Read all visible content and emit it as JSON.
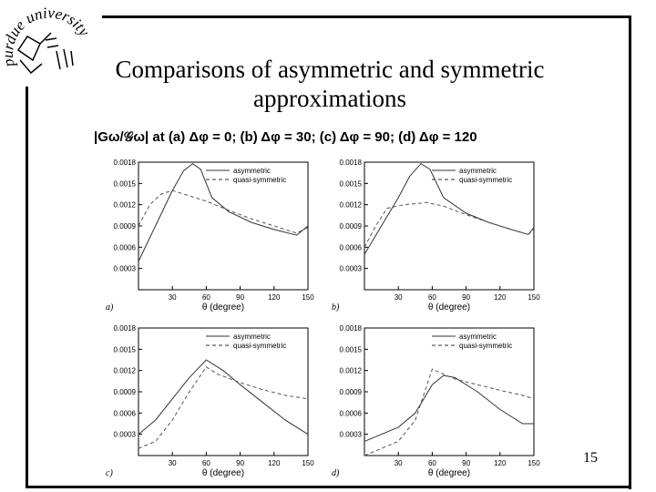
{
  "slide": {
    "logo_text": "purdue university",
    "title_line1": "Comparisons of asymmetric and symmetric",
    "title_line2": "approximations",
    "caption": "|Gω/𝒢ω| at (a) Δφ = 0; (b) Δφ = 30; (c) Δφ = 90; (d) Δφ = 120",
    "page_number": "15"
  },
  "chart_data": [
    {
      "type": "line",
      "panel_label": "a)",
      "xlabel": "θ (degree)",
      "ylim": [
        0,
        0.0018
      ],
      "xlim": [
        0,
        150
      ],
      "xticks": [
        "30",
        "60",
        "90",
        "120",
        "150"
      ],
      "yticks": [
        "0.0018",
        "0.0015",
        "0.0012",
        "0.0009",
        "0.0006",
        "0.0003"
      ],
      "legend_position": "top-right",
      "series": [
        {
          "name": "asymmetric",
          "style": "solid",
          "x": [
            0,
            15,
            30,
            40,
            48,
            55,
            65,
            80,
            100,
            120,
            140,
            150
          ],
          "y": [
            0.0004,
            0.0009,
            0.0014,
            0.00168,
            0.00178,
            0.0017,
            0.0013,
            0.0011,
            0.00095,
            0.00085,
            0.00077,
            0.0009
          ]
        },
        {
          "name": "quasi-symmetric",
          "style": "dashed",
          "x": [
            0,
            10,
            20,
            30,
            40,
            60,
            80,
            100,
            120,
            140,
            150
          ],
          "y": [
            0.0009,
            0.0012,
            0.00135,
            0.0014,
            0.00135,
            0.00125,
            0.00112,
            0.001,
            0.0009,
            0.0008,
            0.00088
          ]
        }
      ]
    },
    {
      "type": "line",
      "panel_label": "b)",
      "xlabel": "θ (degree)",
      "ylim": [
        0,
        0.0018
      ],
      "xlim": [
        0,
        150
      ],
      "xticks": [
        "30",
        "60",
        "90",
        "120",
        "150"
      ],
      "yticks": [
        "0.0018",
        "0.0015",
        "0.0012",
        "0.0009",
        "0.0006",
        "0.0003"
      ],
      "legend_position": "top-right",
      "series": [
        {
          "name": "asymmetric",
          "style": "solid",
          "x": [
            0,
            15,
            30,
            40,
            50,
            58,
            70,
            90,
            110,
            130,
            145,
            150
          ],
          "y": [
            0.0005,
            0.0009,
            0.0013,
            0.0016,
            0.00178,
            0.0017,
            0.0013,
            0.00108,
            0.00095,
            0.00085,
            0.00078,
            0.00088
          ]
        },
        {
          "name": "quasi-symmetric",
          "style": "dashed",
          "x": [
            0,
            10,
            20,
            35,
            55,
            70,
            90,
            110,
            130,
            145,
            150
          ],
          "y": [
            0.0006,
            0.0009,
            0.00115,
            0.0012,
            0.00123,
            0.00118,
            0.00106,
            0.00095,
            0.00085,
            0.00078,
            0.00085
          ]
        }
      ]
    },
    {
      "type": "line",
      "panel_label": "c)",
      "xlabel": "θ (degree)",
      "ylim": [
        0,
        0.0018
      ],
      "xlim": [
        0,
        150
      ],
      "xticks": [
        "30",
        "60",
        "90",
        "120",
        "150"
      ],
      "yticks": [
        "0.0018",
        "0.0015",
        "0.0012",
        "0.0009",
        "0.0006",
        "0.0003"
      ],
      "legend_position": "top-right",
      "series": [
        {
          "name": "asymmetric",
          "style": "solid",
          "x": [
            0,
            15,
            30,
            45,
            60,
            75,
            90,
            110,
            130,
            150
          ],
          "y": [
            0.0003,
            0.0005,
            0.0008,
            0.0011,
            0.00135,
            0.0012,
            0.001,
            0.00075,
            0.0005,
            0.0003
          ]
        },
        {
          "name": "quasi-symmetric",
          "style": "dashed",
          "x": [
            0,
            15,
            30,
            45,
            60,
            70,
            90,
            110,
            130,
            150
          ],
          "y": [
            0.0001,
            0.0002,
            0.0005,
            0.0009,
            0.00125,
            0.00115,
            0.00103,
            0.00093,
            0.00085,
            0.0008
          ]
        }
      ]
    },
    {
      "type": "line",
      "panel_label": "d)",
      "xlabel": "θ (degree)",
      "ylim": [
        0,
        0.0018
      ],
      "xlim": [
        0,
        150
      ],
      "xticks": [
        "30",
        "60",
        "90",
        "120",
        "150"
      ],
      "yticks": [
        "0.0018",
        "0.0015",
        "0.0012",
        "0.0009",
        "0.0006",
        "0.0003"
      ],
      "legend_position": "top-right",
      "series": [
        {
          "name": "asymmetric",
          "style": "solid",
          "x": [
            0,
            15,
            30,
            45,
            60,
            70,
            80,
            100,
            120,
            140,
            150
          ],
          "y": [
            0.0002,
            0.0003,
            0.0004,
            0.0006,
            0.001,
            0.00113,
            0.0011,
            0.0009,
            0.00065,
            0.00045,
            0.00045
          ]
        },
        {
          "name": "quasi-symmetric",
          "style": "dashed",
          "x": [
            0,
            15,
            30,
            45,
            60,
            70,
            80,
            100,
            120,
            140,
            150
          ],
          "y": [
            0.0,
            0.0001,
            0.0002,
            0.0005,
            0.00122,
            0.00115,
            0.00108,
            0.001,
            0.00092,
            0.00085,
            0.0008
          ]
        }
      ]
    }
  ]
}
